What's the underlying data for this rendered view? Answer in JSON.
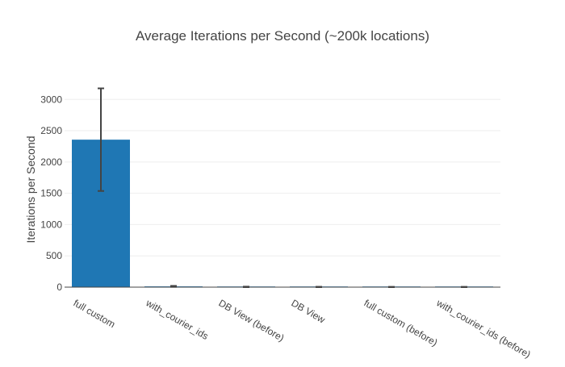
{
  "chart_data": {
    "type": "bar",
    "title": "Average Iterations per Second (~200k locations)",
    "xlabel": "",
    "ylabel": "Iterations per Second",
    "categories": [
      "full custom",
      "with_courier_ids",
      "DB View (before)",
      "DB View",
      "full custom (before)",
      "with_courier_ids (before)"
    ],
    "values": [
      2357,
      12,
      4,
      3,
      2,
      2
    ],
    "error": [
      820,
      8,
      4,
      3,
      3,
      3
    ],
    "ylim": [
      0,
      3300
    ],
    "yticks": [
      0,
      500,
      1000,
      1500,
      2000,
      2500,
      3000
    ],
    "grid": true,
    "legend": "none",
    "colors": {
      "bar": "#1f77b4",
      "error_bar": "#444444",
      "grid": "#eeeeee",
      "axis": "#444444",
      "text": "#444444"
    }
  }
}
